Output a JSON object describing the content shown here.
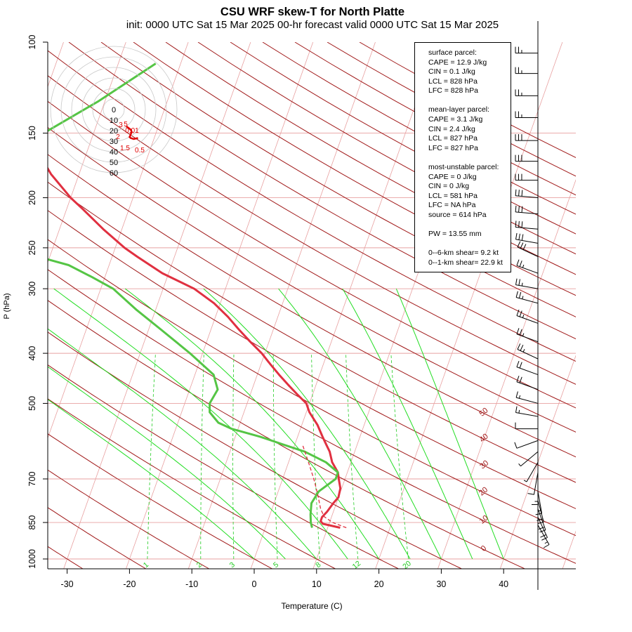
{
  "title": "CSU WRF skew-T for North Platte",
  "subtitle": "init: 0000 UTC Sat 15 Mar 2025    00-hr forecast valid 0000 UTC Sat 15 Mar 2025",
  "colors": {
    "temperature": "#e03040",
    "dewpoint": "#55c545",
    "dry_adiabat": "#a01818",
    "moist_adiabat": "#22dd22",
    "mixing_ratio": "#22cc22",
    "isotherm": "#e8a0a0",
    "isobar": "#e8a0a0"
  },
  "info": {
    "surface_title": "surface parcel:",
    "surface_cape": "CAPE = 12.9 J/kg",
    "surface_cin": "CIN = 0.1 J/kg",
    "surface_lcl": "LCL = 828 hPa",
    "surface_lfc": "LFC = 828 hPa",
    "ml_title": "mean-layer parcel:",
    "ml_cape": "CAPE = 3.1 J/kg",
    "ml_cin": "CIN = 2.4 J/kg",
    "ml_lcl": "LCL = 827 hPa",
    "ml_lfc": "LFC = 827 hPa",
    "mu_title": "most-unstable parcel:",
    "mu_cape": "CAPE = 0 J/kg",
    "mu_cin": "CIN = 0 J/kg",
    "mu_lcl": "LCL = 581 hPa",
    "mu_lfc": "LFC = NA hPa",
    "mu_source": "source = 614 hPa",
    "pw": "PW =  13.55 mm",
    "shear_06": "0--6-km shear= 9.2 kt",
    "shear_01": "0--1-km shear= 22.9 kt"
  },
  "hodograph": {
    "ring_labels": [
      "0",
      "10",
      "20",
      "30",
      "40",
      "50",
      "60"
    ],
    "height_labels": [
      "5",
      "3",
      "0.01",
      "2",
      "1.5",
      "0.5"
    ],
    "trace_uv": [
      [
        12,
        -16
      ],
      [
        16,
        -19
      ],
      [
        17,
        -21
      ],
      [
        16,
        -24
      ],
      [
        15,
        -26
      ],
      [
        16,
        -27
      ],
      [
        19,
        -28
      ],
      [
        23,
        -27
      ]
    ]
  },
  "chart_data": {
    "type": "skew-t",
    "title": "CSU WRF skew-T for North Platte",
    "xlabel": "Temperature (C)",
    "ylabel": "P (hPa)",
    "x_ticks": [
      -30,
      -20,
      -10,
      0,
      10,
      20,
      30,
      40
    ],
    "y_ticks": [
      100,
      150,
      200,
      250,
      300,
      400,
      500,
      700,
      850,
      1000
    ],
    "xlim": [
      -33,
      51
    ],
    "ylim": [
      1050,
      100
    ],
    "isobars": [
      150,
      200,
      250,
      300,
      400,
      500,
      700,
      850,
      1000
    ],
    "dry_adiabat_labels": [
      {
        "text": "0",
        "t": 0
      },
      {
        "text": "10",
        "t": 10
      },
      {
        "text": "20",
        "t": 20
      },
      {
        "text": "30",
        "t": 30
      },
      {
        "text": "40",
        "t": 40
      },
      {
        "text": "50",
        "t": 50
      }
    ],
    "mixing_ratio_labels": [
      "1",
      "2",
      "3",
      "5",
      "8",
      "12",
      "20"
    ],
    "series": [
      {
        "name": "temperature",
        "points": [
          [
            870,
            12
          ],
          [
            855,
            9
          ],
          [
            845,
            8.5
          ],
          [
            830,
            8.5
          ],
          [
            810,
            9
          ],
          [
            780,
            9.5
          ],
          [
            760,
            10
          ],
          [
            730,
            9.8
          ],
          [
            700,
            9
          ],
          [
            680,
            8.5
          ],
          [
            650,
            7
          ],
          [
            620,
            6
          ],
          [
            600,
            5
          ],
          [
            580,
            4
          ],
          [
            550,
            2.5
          ],
          [
            520,
            0.5
          ],
          [
            500,
            -0.5
          ],
          [
            480,
            -2.5
          ],
          [
            460,
            -4.5
          ],
          [
            440,
            -6.5
          ],
          [
            420,
            -8.5
          ],
          [
            400,
            -10.5
          ],
          [
            380,
            -13
          ],
          [
            360,
            -15.5
          ],
          [
            340,
            -18
          ],
          [
            320,
            -21
          ],
          [
            300,
            -25
          ],
          [
            280,
            -31
          ],
          [
            260,
            -36
          ],
          [
            250,
            -38.5
          ],
          [
            230,
            -43
          ],
          [
            210,
            -47.5
          ],
          [
            200,
            -50
          ],
          [
            180,
            -54.5
          ],
          [
            160,
            -58.5
          ],
          [
            150,
            -60.5
          ],
          [
            140,
            -62.5
          ],
          [
            120,
            -67
          ],
          [
            105,
            -70.5
          ]
        ]
      },
      {
        "name": "dewpoint",
        "points": [
          [
            870,
            7.5
          ],
          [
            850,
            7
          ],
          [
            820,
            6.5
          ],
          [
            780,
            6
          ],
          [
            740,
            6.5
          ],
          [
            700,
            8.5
          ],
          [
            680,
            8.5
          ],
          [
            650,
            6
          ],
          [
            620,
            2
          ],
          [
            600,
            -2
          ],
          [
            580,
            -6
          ],
          [
            560,
            -11
          ],
          [
            545,
            -13.5
          ],
          [
            520,
            -15.5
          ],
          [
            500,
            -16
          ],
          [
            470,
            -15.5
          ],
          [
            440,
            -17
          ],
          [
            400,
            -22
          ],
          [
            360,
            -28
          ],
          [
            330,
            -33
          ],
          [
            300,
            -38
          ],
          [
            285,
            -42
          ],
          [
            270,
            -46.5
          ],
          [
            258,
            -53
          ],
          [
            250,
            -65
          ],
          [
            240,
            -72
          ],
          [
            230,
            -72.5
          ],
          [
            200,
            -68.5
          ],
          [
            180,
            -65
          ],
          [
            150,
            -58
          ],
          [
            130,
            -51
          ],
          [
            110,
            -44
          ]
        ]
      }
    ],
    "parcel": {
      "name": "parcel",
      "points": [
        [
          870,
          13
        ],
        [
          850,
          10.5
        ],
        [
          828,
          8.8
        ],
        [
          800,
          7.8
        ],
        [
          750,
          6.5
        ],
        [
          700,
          5
        ],
        [
          650,
          3.2
        ],
        [
          600,
          1.2
        ]
      ]
    },
    "wind_barbs": [
      {
        "p": 860,
        "dir": 150,
        "spd": 15
      },
      {
        "p": 830,
        "dir": 155,
        "spd": 20
      },
      {
        "p": 800,
        "dir": 160,
        "spd": 22
      },
      {
        "p": 770,
        "dir": 165,
        "spd": 20
      },
      {
        "p": 740,
        "dir": 170,
        "spd": 18
      },
      {
        "p": 710,
        "dir": 180,
        "spd": 15
      },
      {
        "p": 680,
        "dir": 190,
        "spd": 10
      },
      {
        "p": 650,
        "dir": 210,
        "spd": 8
      },
      {
        "p": 620,
        "dir": 230,
        "spd": 8
      },
      {
        "p": 590,
        "dir": 250,
        "spd": 10
      },
      {
        "p": 560,
        "dir": 270,
        "spd": 10
      },
      {
        "p": 530,
        "dir": 280,
        "spd": 15
      },
      {
        "p": 500,
        "dir": 285,
        "spd": 15
      },
      {
        "p": 470,
        "dir": 290,
        "spd": 20
      },
      {
        "p": 440,
        "dir": 290,
        "spd": 20
      },
      {
        "p": 410,
        "dir": 295,
        "spd": 25
      },
      {
        "p": 380,
        "dir": 290,
        "spd": 25
      },
      {
        "p": 350,
        "dir": 290,
        "spd": 25
      },
      {
        "p": 320,
        "dir": 285,
        "spd": 25
      },
      {
        "p": 300,
        "dir": 280,
        "spd": 25
      },
      {
        "p": 280,
        "dir": 290,
        "spd": 25
      },
      {
        "p": 260,
        "dir": 295,
        "spd": 30
      },
      {
        "p": 245,
        "dir": 280,
        "spd": 30
      },
      {
        "p": 230,
        "dir": 275,
        "spd": 30
      },
      {
        "p": 215,
        "dir": 275,
        "spd": 30
      },
      {
        "p": 200,
        "dir": 275,
        "spd": 30
      },
      {
        "p": 185,
        "dir": 270,
        "spd": 30
      },
      {
        "p": 170,
        "dir": 270,
        "spd": 30
      },
      {
        "p": 155,
        "dir": 270,
        "spd": 30
      },
      {
        "p": 140,
        "dir": 270,
        "spd": 25
      },
      {
        "p": 127,
        "dir": 270,
        "spd": 25
      },
      {
        "p": 115,
        "dir": 270,
        "spd": 25
      },
      {
        "p": 105,
        "dir": 270,
        "spd": 25
      }
    ]
  }
}
